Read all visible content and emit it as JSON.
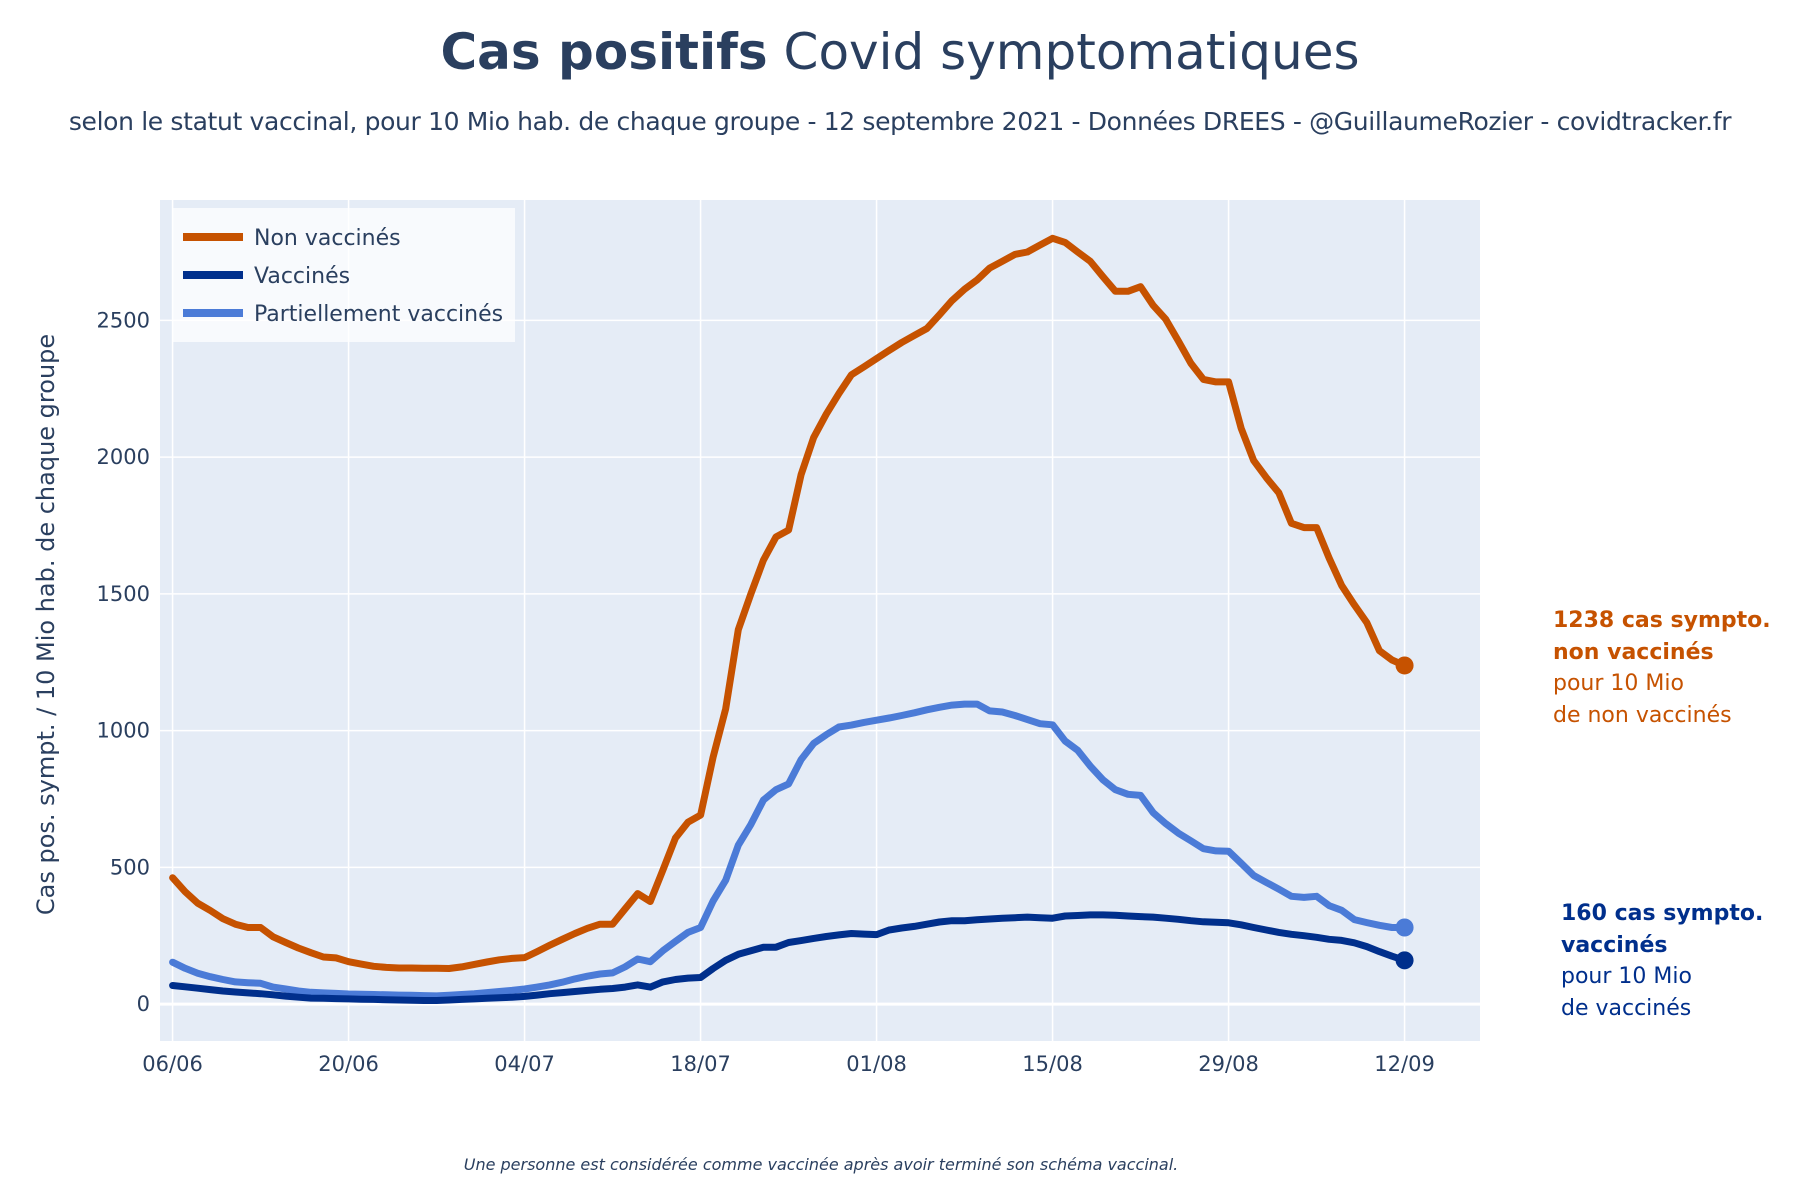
{
  "header": {
    "title_bold": "Cas positifs",
    "title_rest": " Covid symptomatiques",
    "subtitle": "selon le statut vaccinal, pour 10 Mio hab. de chaque groupe - 12 septembre 2021 - Données DREES - @GuillaumeRozier - covidtracker.fr"
  },
  "footer": {
    "note": "Une personne est considérée comme vaccinée après avoir terminé son schéma vaccinal."
  },
  "annotations": {
    "non_vaccines": {
      "line1": "1238 cas sympto.",
      "line2": "non vaccinés",
      "line3": "pour 10 Mio",
      "line4": "de non vaccinés"
    },
    "vaccines": {
      "line1": "160 cas sympto.",
      "line2": "vaccinés",
      "line3": "pour 10 Mio",
      "line4": "de vaccinés"
    }
  },
  "colors": {
    "non_vaccines": "#c65200",
    "vaccines": "#002f8c",
    "partiellement": "#4b7bd7",
    "plot_bg": "#e5ecf6",
    "grid": "#ffffff",
    "text": "#2a3f5f"
  },
  "chart_data": {
    "type": "line",
    "title": "Cas positifs Covid symptomatiques",
    "xlabel": "",
    "ylabel": "Cas pos. sympt. / 10 Mio hab. de chaque groupe",
    "x_start": "06/06",
    "x_step_days": 1,
    "x_ticks": [
      {
        "label": "06/06",
        "day": 0
      },
      {
        "label": "20/06",
        "day": 14
      },
      {
        "label": "04/07",
        "day": 28
      },
      {
        "label": "18/07",
        "day": 42
      },
      {
        "label": "01/08",
        "day": 56
      },
      {
        "label": "15/08",
        "day": 70
      },
      {
        "label": "29/08",
        "day": 84
      },
      {
        "label": "12/09",
        "day": 98
      }
    ],
    "y_ticks": [
      0,
      500,
      1000,
      1500,
      2000,
      2500
    ],
    "xlim_days": [
      -1,
      104
    ],
    "ylim": [
      -135,
      2940
    ],
    "grid": true,
    "legend_position": "top-left",
    "series": [
      {
        "name": "Non vaccinés",
        "color_key": "non_vaccines",
        "values": [
          462,
          411,
          369,
          342,
          312,
          292,
          280,
          280,
          246,
          225,
          205,
          188,
          172,
          169,
          155,
          146,
          138,
          134,
          132,
          132,
          131,
          131,
          130,
          136,
          145,
          154,
          162,
          167,
          170,
          192,
          215,
          237,
          258,
          277,
          292,
          292,
          348,
          404,
          375,
          490,
          607,
          665,
          691,
          903,
          1080,
          1369,
          1500,
          1623,
          1708,
          1733,
          1936,
          2072,
          2157,
          2232,
          2301,
          2330,
          2360,
          2390,
          2419,
          2445,
          2470,
          2520,
          2572,
          2614,
          2648,
          2691,
          2716,
          2741,
          2750,
          2775,
          2800,
          2785,
          2750,
          2716,
          2660,
          2606,
          2606,
          2623,
          2555,
          2504,
          2425,
          2343,
          2284,
          2275,
          2275,
          2106,
          1987,
          1925,
          1869,
          1758,
          1742,
          1742,
          1631,
          1530,
          1460,
          1394,
          1292,
          1258,
          1238
        ]
      },
      {
        "name": "Vaccinés",
        "color_key": "vaccines",
        "values": [
          68,
          63,
          58,
          53,
          48,
          44,
          41,
          38,
          34,
          29,
          25,
          22,
          21,
          20,
          19,
          18,
          17,
          16,
          15,
          14,
          13,
          13,
          15,
          17,
          19,
          21,
          23,
          25,
          28,
          33,
          38,
          42,
          46,
          50,
          54,
          57,
          62,
          70,
          62,
          81,
          90,
          95,
          97,
          130,
          160,
          182,
          195,
          208,
          208,
          225,
          232,
          240,
          247,
          253,
          258,
          256,
          254,
          271,
          278,
          284,
          292,
          300,
          305,
          305,
          308,
          311,
          314,
          316,
          318,
          316,
          314,
          322,
          324,
          326,
          326,
          325,
          322,
          320,
          318,
          314,
          310,
          305,
          301,
          299,
          297,
          290,
          280,
          271,
          262,
          255,
          250,
          244,
          237,
          233,
          224,
          210,
          192,
          175,
          160
        ]
      },
      {
        "name": "Partiellement vaccinés",
        "color_key": "partiellement",
        "values": [
          153,
          131,
          113,
          100,
          90,
          81,
          78,
          76,
          62,
          55,
          48,
          43,
          41,
          39,
          37,
          36,
          35,
          34,
          33,
          32,
          31,
          30,
          32,
          35,
          38,
          42,
          46,
          50,
          55,
          62,
          70,
          80,
          92,
          102,
          110,
          114,
          136,
          165,
          155,
          195,
          229,
          262,
          280,
          377,
          453,
          581,
          657,
          746,
          784,
          805,
          894,
          953,
          985,
          1013,
          1020,
          1030,
          1038,
          1046,
          1055,
          1065,
          1076,
          1085,
          1093,
          1097,
          1097,
          1072,
          1068,
          1055,
          1040,
          1025,
          1021,
          962,
          928,
          870,
          820,
          784,
          767,
          763,
          700,
          660,
          625,
          597,
          568,
          560,
          559,
          515,
          470,
          445,
          420,
          394,
          390,
          394,
          360,
          343,
          309,
          298,
          288,
          280,
          280
        ]
      }
    ],
    "last_values": {
      "Non vaccinés": 1238,
      "Vaccinés": 160,
      "Partiellement vaccinés": 280
    }
  }
}
